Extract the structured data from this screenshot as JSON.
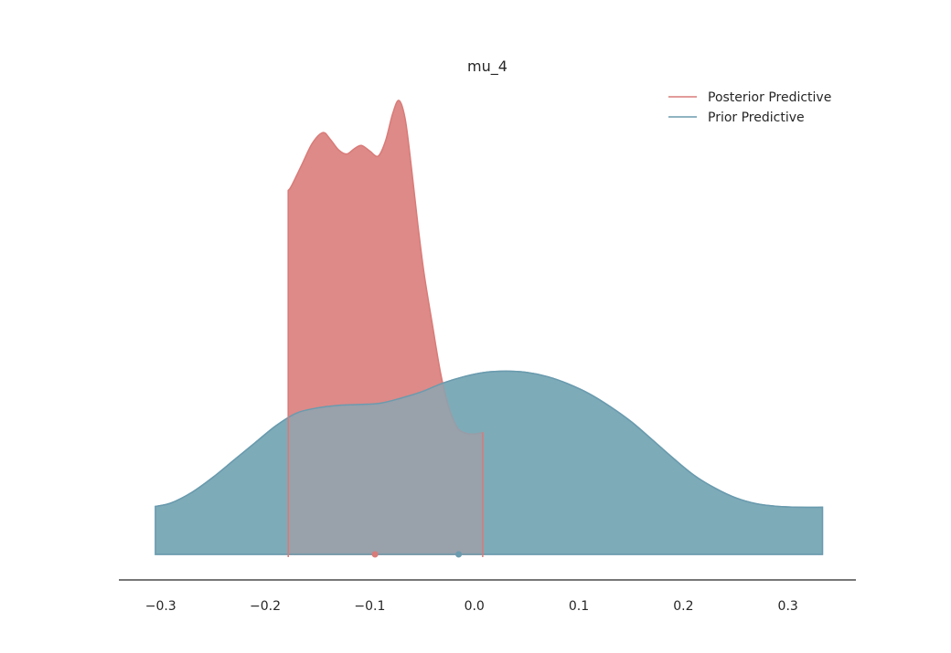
{
  "chart_data": {
    "type": "area",
    "title": "mu_4",
    "xlabel": "",
    "ylabel": "",
    "xlim": [
      -0.34,
      0.365
    ],
    "xticks": [
      -0.3,
      -0.2,
      -0.1,
      0.0,
      0.1,
      0.2,
      0.3
    ],
    "xtick_labels": [
      "−0.3",
      "−0.2",
      "−0.1",
      "0.0",
      "0.1",
      "0.2",
      "0.3"
    ],
    "ylim": [
      0,
      1.0
    ],
    "y_axis_visible": false,
    "grid": false,
    "legend_position": "top-right",
    "series": [
      {
        "name": "Posterior Predictive",
        "color": "#dd8a88",
        "line_color": "#d97b78",
        "mean_marker_x": -0.095,
        "x": [
          -0.178,
          -0.175,
          -0.165,
          -0.155,
          -0.145,
          -0.138,
          -0.13,
          -0.122,
          -0.115,
          -0.108,
          -0.1,
          -0.092,
          -0.085,
          -0.078,
          -0.072,
          -0.066,
          -0.06,
          -0.054,
          -0.048,
          -0.04,
          -0.032,
          -0.024,
          -0.016,
          -0.008,
          0.0,
          0.008
        ],
        "y": [
          0.85,
          0.86,
          0.91,
          0.96,
          0.985,
          0.97,
          0.945,
          0.935,
          0.947,
          0.955,
          0.942,
          0.93,
          0.965,
          1.03,
          1.06,
          1.015,
          0.9,
          0.77,
          0.655,
          0.535,
          0.42,
          0.34,
          0.295,
          0.283,
          0.281,
          0.285
        ]
      },
      {
        "name": "Prior Predictive",
        "color": "#7eabb8",
        "line_color": "#6a9bae",
        "mean_marker_x": -0.015,
        "x": [
          -0.305,
          -0.29,
          -0.27,
          -0.25,
          -0.23,
          -0.21,
          -0.19,
          -0.17,
          -0.15,
          -0.13,
          -0.11,
          -0.09,
          -0.07,
          -0.05,
          -0.03,
          -0.01,
          0.01,
          0.03,
          0.05,
          0.07,
          0.09,
          0.11,
          0.13,
          0.15,
          0.17,
          0.19,
          0.21,
          0.23,
          0.25,
          0.27,
          0.29,
          0.31,
          0.333
        ],
        "y": [
          0.112,
          0.12,
          0.145,
          0.18,
          0.22,
          0.26,
          0.3,
          0.33,
          0.342,
          0.348,
          0.35,
          0.353,
          0.365,
          0.38,
          0.4,
          0.415,
          0.425,
          0.428,
          0.425,
          0.415,
          0.398,
          0.375,
          0.345,
          0.31,
          0.268,
          0.225,
          0.185,
          0.155,
          0.132,
          0.118,
          0.112,
          0.11,
          0.11
        ]
      }
    ]
  }
}
